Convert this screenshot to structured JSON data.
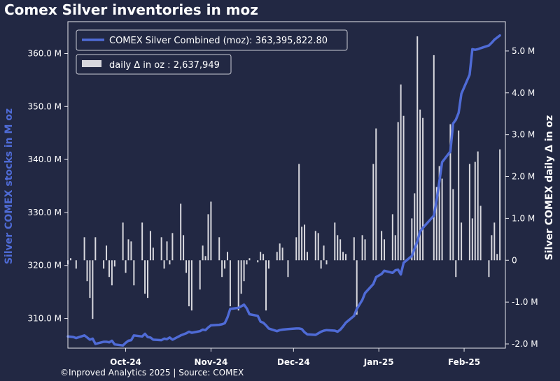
{
  "title": "Comex Silver inventories in moz",
  "footer": "©Inproved Analytics 2025 | Source: COMEX",
  "colors": {
    "background": "#222843",
    "line": "#4f6bd6",
    "bars": "#d8d8de",
    "left_axis_label": "#4f6bd6"
  },
  "chart_data": {
    "type": "line",
    "title": "Comex Silver inventories in moz",
    "ylabel_left": "Silver COMEX stocks in M oz",
    "ylabel_right": "Silver COMEX daily Δ in oz",
    "xlim": [
      "2024-09-10",
      "2025-02-16"
    ],
    "ylim_left": [
      304.4,
      366.0
    ],
    "ylim_right": [
      -2.1,
      5.7
    ],
    "x_ticks": [
      {
        "date": "2024-10-01",
        "label": "Oct-24"
      },
      {
        "date": "2024-11-01",
        "label": "Nov-24"
      },
      {
        "date": "2024-12-01",
        "label": "Dec-24"
      },
      {
        "date": "2025-01-01",
        "label": "Jan-25"
      },
      {
        "date": "2025-02-01",
        "label": "Feb-25"
      }
    ],
    "y_ticks_left": [
      {
        "value": 310,
        "label": "310.0 M"
      },
      {
        "value": 320,
        "label": "320.0 M"
      },
      {
        "value": 330,
        "label": "330.0 M"
      },
      {
        "value": 340,
        "label": "340.0 M"
      },
      {
        "value": 350,
        "label": "350.0 M"
      },
      {
        "value": 360,
        "label": "360.0 M"
      }
    ],
    "y_ticks_right": [
      {
        "value": -2,
        "label": "-2.0 M"
      },
      {
        "value": -1,
        "label": "-1.0 M"
      },
      {
        "value": 0,
        "label": "0"
      },
      {
        "value": 1,
        "label": "1.0 M"
      },
      {
        "value": 2,
        "label": "2.0 M"
      },
      {
        "value": 3,
        "label": "3.0 M"
      },
      {
        "value": 4,
        "label": "4.0 M"
      },
      {
        "value": 5,
        "label": "5.0 M"
      }
    ],
    "legend": [
      {
        "label": "COMEX Silver Combined (moz): 363,395,822.80",
        "kind": "line"
      },
      {
        "label": "daily Δ in oz : 2,637,949",
        "kind": "bar"
      }
    ],
    "legend_placement": "top-left",
    "series": [
      {
        "name": "COMEX Silver Combined (moz)",
        "axis": "left",
        "x": [
          "2024-09-10",
          "2024-09-12",
          "2024-09-13",
          "2024-09-16",
          "2024-09-17",
          "2024-09-18",
          "2024-09-19",
          "2024-09-20",
          "2024-09-23",
          "2024-09-24",
          "2024-09-25",
          "2024-09-26",
          "2024-09-27",
          "2024-09-30",
          "2024-10-01",
          "2024-10-02",
          "2024-10-03",
          "2024-10-04",
          "2024-10-07",
          "2024-10-08",
          "2024-10-09",
          "2024-10-10",
          "2024-10-11",
          "2024-10-14",
          "2024-10-15",
          "2024-10-16",
          "2024-10-17",
          "2024-10-18",
          "2024-10-21",
          "2024-10-22",
          "2024-10-23",
          "2024-10-24",
          "2024-10-25",
          "2024-10-28",
          "2024-10-29",
          "2024-10-30",
          "2024-10-31",
          "2024-11-01",
          "2024-11-04",
          "2024-11-05",
          "2024-11-06",
          "2024-11-07",
          "2024-11-08",
          "2024-11-11",
          "2024-11-12",
          "2024-11-13",
          "2024-11-14",
          "2024-11-15",
          "2024-11-18",
          "2024-11-19",
          "2024-11-20",
          "2024-11-21",
          "2024-11-22",
          "2024-11-25",
          "2024-11-26",
          "2024-11-27",
          "2024-11-29",
          "2024-12-02",
          "2024-12-03",
          "2024-12-04",
          "2024-12-05",
          "2024-12-06",
          "2024-12-09",
          "2024-12-10",
          "2024-12-11",
          "2024-12-12",
          "2024-12-13",
          "2024-12-16",
          "2024-12-17",
          "2024-12-18",
          "2024-12-19",
          "2024-12-20",
          "2024-12-23",
          "2024-12-24",
          "2024-12-26",
          "2024-12-27",
          "2024-12-30",
          "2024-12-31",
          "2025-01-02",
          "2025-01-03",
          "2025-01-06",
          "2025-01-07",
          "2025-01-08",
          "2025-01-09",
          "2025-01-10",
          "2025-01-13",
          "2025-01-14",
          "2025-01-15",
          "2025-01-16",
          "2025-01-17",
          "2025-01-21",
          "2025-01-22",
          "2025-01-23",
          "2025-01-24",
          "2025-01-27",
          "2025-01-28",
          "2025-01-29",
          "2025-01-30",
          "2025-01-31",
          "2025-02-03",
          "2025-02-04",
          "2025-02-05",
          "2025-02-06",
          "2025-02-07",
          "2025-02-10",
          "2025-02-11",
          "2025-02-12",
          "2025-02-13",
          "2025-02-14"
        ],
        "values": [
          306.6,
          306.5,
          306.3,
          306.8,
          306.4,
          306.0,
          306.2,
          305.2,
          305.6,
          305.6,
          305.5,
          305.8,
          305.1,
          304.9,
          305.4,
          305.8,
          305.9,
          306.8,
          306.6,
          307.1,
          306.5,
          306.4,
          306.0,
          305.9,
          306.2,
          306.1,
          306.4,
          306.0,
          306.8,
          307.0,
          307.2,
          307.5,
          307.3,
          307.6,
          307.9,
          307.8,
          308.3,
          308.7,
          308.8,
          308.9,
          309.1,
          310.2,
          311.8,
          312.0,
          312.3,
          312.6,
          311.9,
          310.8,
          310.5,
          309.4,
          309.2,
          308.7,
          308.1,
          307.6,
          307.8,
          307.9,
          308.0,
          308.1,
          308.1,
          308.0,
          307.4,
          307.0,
          306.9,
          307.2,
          307.5,
          307.7,
          307.8,
          307.7,
          307.5,
          307.9,
          308.5,
          309.2,
          310.5,
          311.8,
          313.5,
          314.8,
          316.5,
          317.8,
          318.4,
          319.0,
          318.6,
          319.1,
          319.2,
          318.3,
          320.5,
          321.8,
          323.2,
          324.5,
          326.4,
          327.1,
          329.4,
          332.3,
          335.9,
          339.5,
          341.5,
          346.8,
          347.5,
          348.8,
          352.4,
          356.0,
          360.8,
          360.7,
          360.8,
          361.0,
          361.5,
          362.0,
          362.6,
          363.0,
          363.4
        ]
      },
      {
        "name": "daily Δ in oz",
        "axis": "right",
        "type": "bar",
        "x": [
          "2024-09-10",
          "2024-09-11",
          "2024-09-13",
          "2024-09-16",
          "2024-09-17",
          "2024-09-18",
          "2024-09-19",
          "2024-09-20",
          "2024-09-23",
          "2024-09-24",
          "2024-09-25",
          "2024-09-26",
          "2024-09-27",
          "2024-09-30",
          "2024-10-01",
          "2024-10-02",
          "2024-10-03",
          "2024-10-04",
          "2024-10-07",
          "2024-10-08",
          "2024-10-09",
          "2024-10-10",
          "2024-10-11",
          "2024-10-14",
          "2024-10-15",
          "2024-10-16",
          "2024-10-17",
          "2024-10-18",
          "2024-10-21",
          "2024-10-22",
          "2024-10-23",
          "2024-10-24",
          "2024-10-25",
          "2024-10-28",
          "2024-10-29",
          "2024-10-30",
          "2024-10-31",
          "2024-11-01",
          "2024-11-04",
          "2024-11-05",
          "2024-11-06",
          "2024-11-07",
          "2024-11-08",
          "2024-11-11",
          "2024-11-12",
          "2024-11-13",
          "2024-11-14",
          "2024-11-15",
          "2024-11-18",
          "2024-11-19",
          "2024-11-20",
          "2024-11-21",
          "2024-11-22",
          "2024-11-25",
          "2024-11-26",
          "2024-11-27",
          "2024-11-29",
          "2024-12-02",
          "2024-12-03",
          "2024-12-04",
          "2024-12-05",
          "2024-12-06",
          "2024-12-09",
          "2024-12-10",
          "2024-12-11",
          "2024-12-12",
          "2024-12-13",
          "2024-12-16",
          "2024-12-17",
          "2024-12-18",
          "2024-12-19",
          "2024-12-20",
          "2024-12-23",
          "2024-12-24",
          "2024-12-26",
          "2024-12-27",
          "2024-12-30",
          "2024-12-31",
          "2025-01-02",
          "2025-01-03",
          "2025-01-06",
          "2025-01-07",
          "2025-01-08",
          "2025-01-09",
          "2025-01-10",
          "2025-01-13",
          "2025-01-14",
          "2025-01-15",
          "2025-01-16",
          "2025-01-17",
          "2025-01-21",
          "2025-01-22",
          "2025-01-23",
          "2025-01-24",
          "2025-01-27",
          "2025-01-28",
          "2025-01-29",
          "2025-01-30",
          "2025-01-31",
          "2025-02-03",
          "2025-02-04",
          "2025-02-05",
          "2025-02-06",
          "2025-02-07",
          "2025-02-10",
          "2025-02-11",
          "2025-02-12",
          "2025-02-13",
          "2025-02-14"
        ],
        "values": [
          -0.1,
          0.05,
          -0.2,
          0.55,
          -0.5,
          -0.9,
          -1.4,
          0.55,
          -0.2,
          0.35,
          -0.4,
          -0.6,
          -0.15,
          0.9,
          -0.3,
          0.5,
          0.45,
          -0.6,
          0.9,
          -0.8,
          -0.9,
          0.7,
          0.3,
          0.55,
          -0.2,
          0.45,
          -0.1,
          0.65,
          1.35,
          0.6,
          -0.3,
          -1.1,
          -1.2,
          -0.7,
          0.35,
          0.1,
          1.1,
          1.4,
          0.55,
          -0.4,
          -0.2,
          0.2,
          -1.1,
          -1.2,
          -0.8,
          -0.5,
          -0.1,
          0.05,
          -0.05,
          0.2,
          0.15,
          -1.2,
          -0.2,
          0.2,
          0.4,
          0.3,
          -0.4,
          0.55,
          2.3,
          0.8,
          0.85,
          0.2,
          0.7,
          0.65,
          -0.2,
          0.35,
          -0.1,
          0.9,
          0.6,
          0.5,
          0.2,
          0.15,
          0.55,
          -1.3,
          0.6,
          0.5,
          2.3,
          3.15,
          0.7,
          0.5,
          1.1,
          0.6,
          3.3,
          4.2,
          3.45,
          1.0,
          1.6,
          5.35,
          3.6,
          3.4,
          4.9,
          1.75,
          2.25,
          1.95,
          3.25,
          1.7,
          -0.4,
          3.1,
          0.9,
          2.3,
          1.0,
          2.35,
          2.6,
          1.3,
          -0.4,
          0.6,
          0.9,
          0.15,
          2.65
        ]
      }
    ]
  }
}
